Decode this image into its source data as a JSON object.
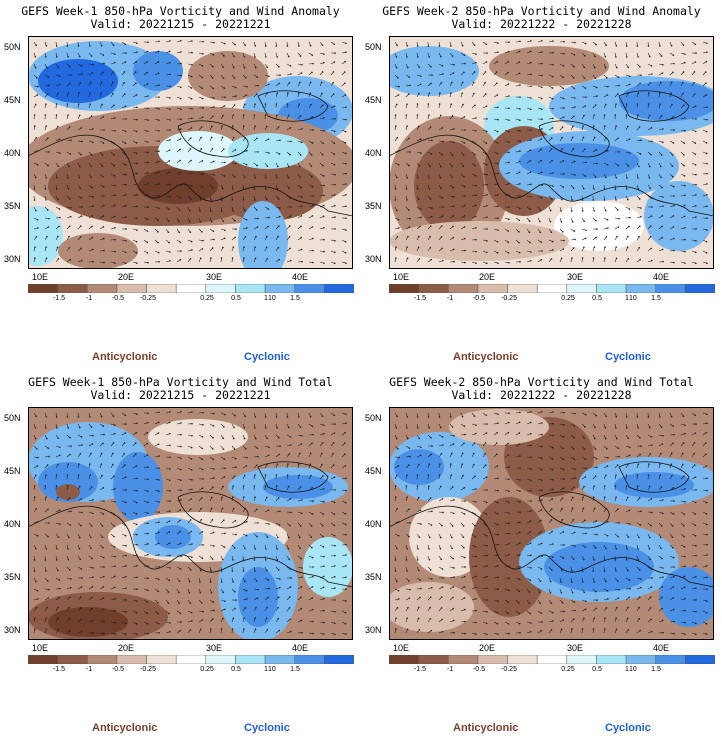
{
  "colors": {
    "scale": [
      "#6f3f2c",
      "#8d5c48",
      "#b38a76",
      "#d8bdad",
      "#efe0d5",
      "#ffffff",
      "#ddf6fb",
      "#a8e6f5",
      "#79b9ef",
      "#4a90e6",
      "#2268de"
    ],
    "anticyclonic": "#7a3f2a",
    "cyclonic": "#1f5fd6"
  },
  "ylabels": [
    "50N",
    "45N",
    "40N",
    "35N",
    "30N"
  ],
  "xlabels": [
    "10E",
    "20E",
    "30E",
    "40E"
  ],
  "colorbar": {
    "ticks": [
      "-1.5",
      "-1",
      "-0.5",
      "-0.25",
      "0.25",
      "0.5",
      "1",
      "1.5"
    ],
    "note": "10"
  },
  "legend": {
    "anticyclonic": "Anticyclonic",
    "cyclonic": "Cyclonic"
  },
  "panels": [
    {
      "title": "GEFS Week-1 850-hPa Vorticity and Wind Anomaly",
      "valid": "Valid: 20221215 - 20221221"
    },
    {
      "title": "GEFS Week-2 850-hPa Vorticity and Wind Anomaly",
      "valid": "Valid: 20221222 - 20221228"
    },
    {
      "title": "GEFS Week-1 850-hPa Vorticity and Wind Total",
      "valid": "Valid: 20221215 - 20221221"
    },
    {
      "title": "GEFS Week-2 850-hPa Vorticity and Wind Total",
      "valid": "Valid: 20221222 - 20221228"
    }
  ]
}
